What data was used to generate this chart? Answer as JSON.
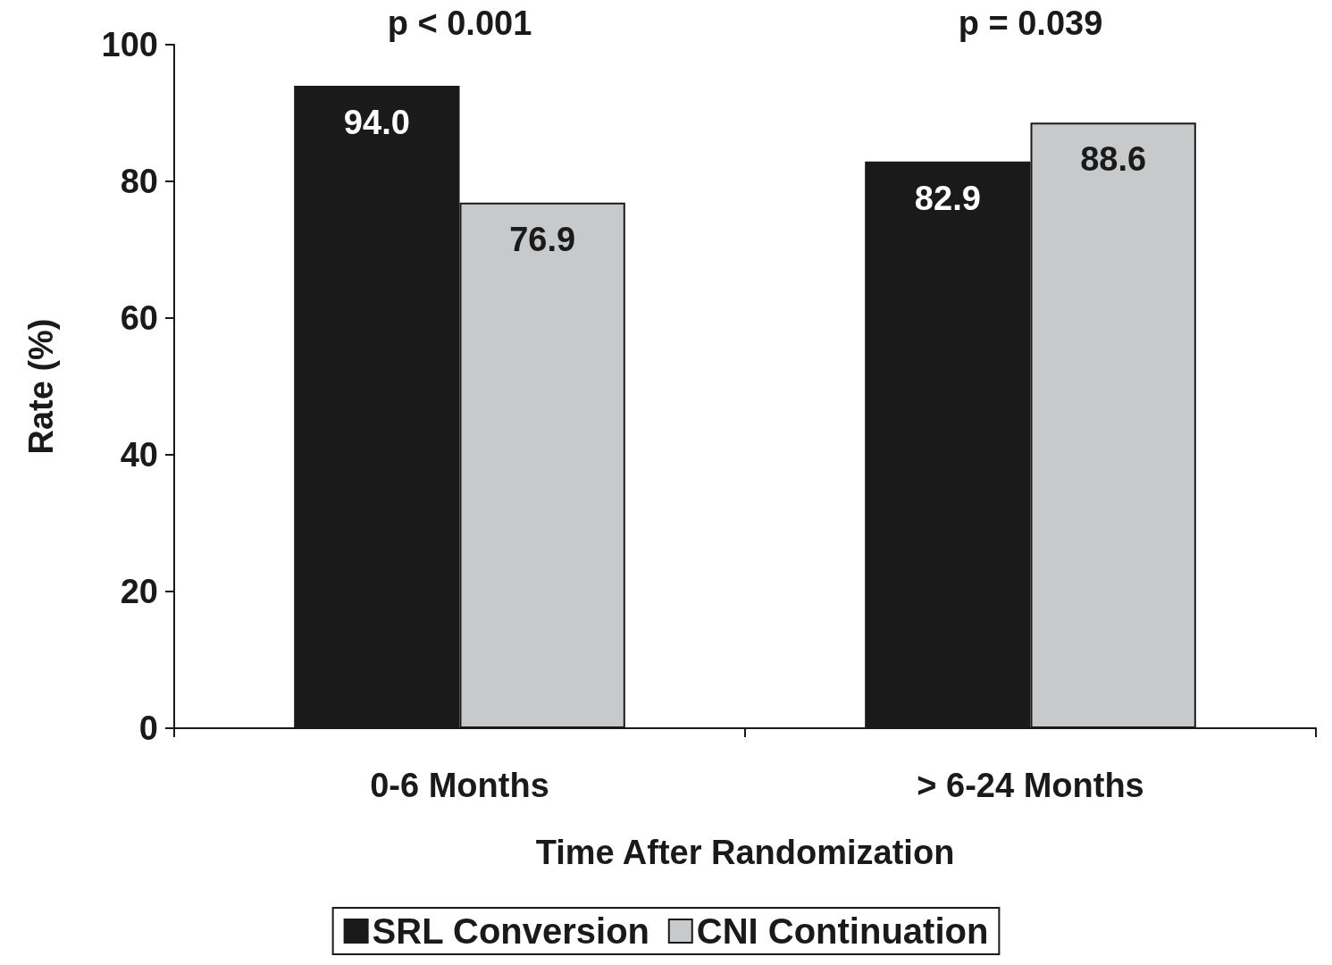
{
  "chart_data": {
    "type": "bar",
    "xlabel": "Time After Randomization",
    "ylabel": "Rate (%)",
    "categories": [
      "0-6 Months",
      "> 6-24 Months"
    ],
    "series": [
      {
        "name": "SRL Conversion",
        "color": "#1a1a1a",
        "values": [
          94.0,
          82.9
        ],
        "value_labels": [
          "94.0",
          "82.9"
        ]
      },
      {
        "name": "CNI Continuation",
        "color": "#c8c9cb",
        "values": [
          76.9,
          88.6
        ],
        "value_labels": [
          "76.9",
          "88.6"
        ]
      }
    ],
    "annotations": [
      "p < 0.001",
      "p = 0.039"
    ],
    "ylim": [
      0,
      100
    ],
    "yticks": [
      0,
      20,
      40,
      60,
      80,
      100
    ],
    "grid": false,
    "legend": "bottom"
  }
}
